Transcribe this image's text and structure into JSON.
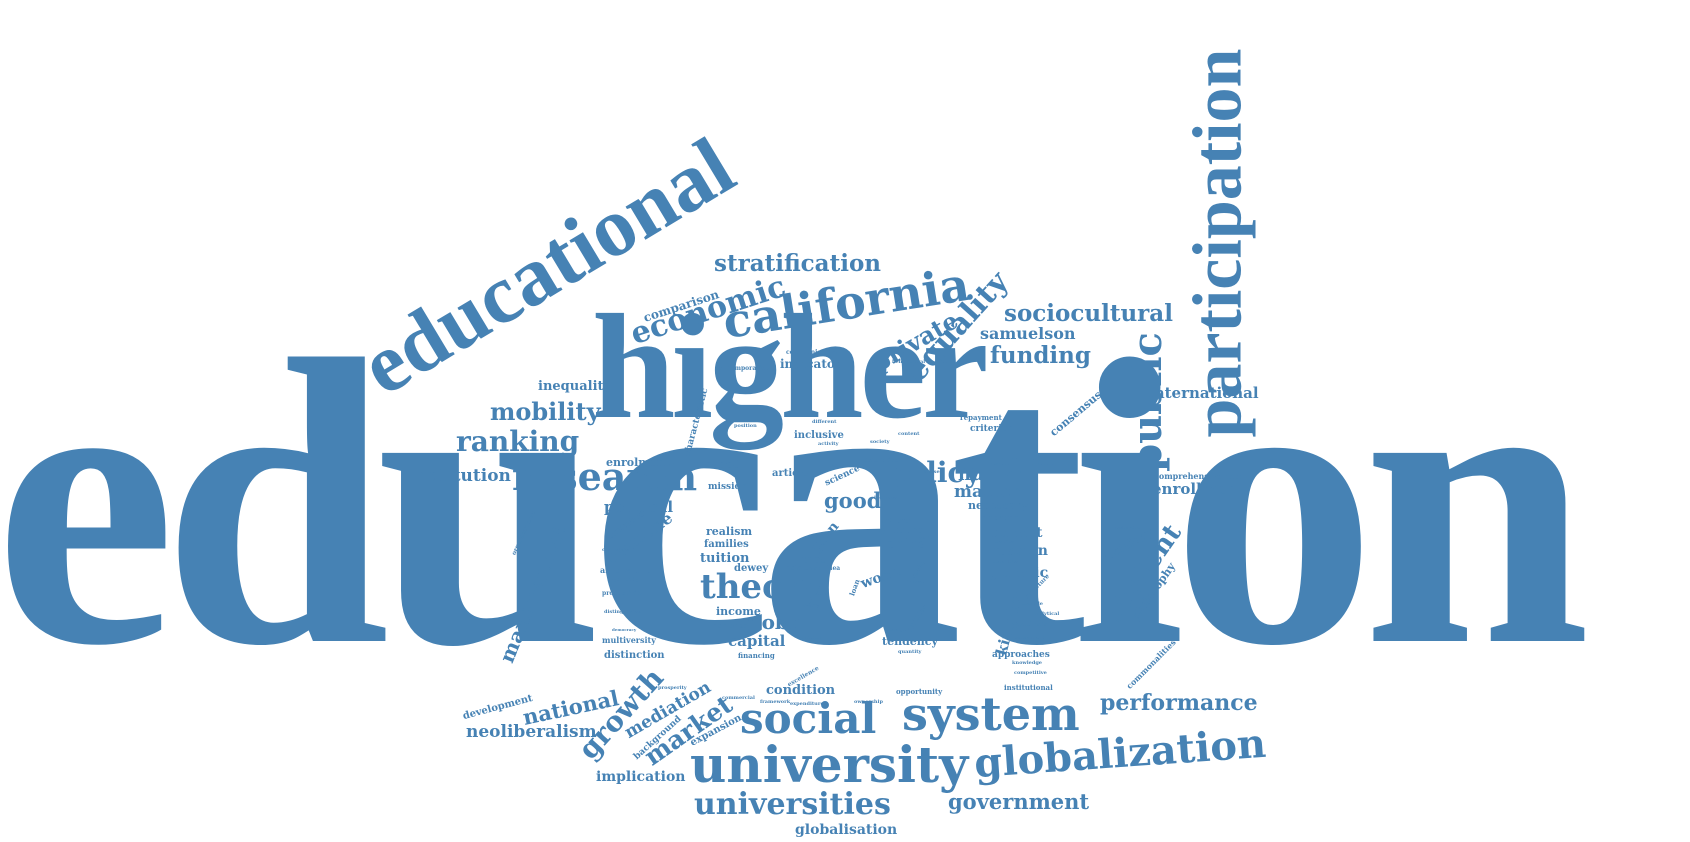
{
  "wordcloud": {
    "color": "#4682b4",
    "background": "#ffffff",
    "words": {
      "education": "education",
      "higher": "higher",
      "educational": "educational",
      "participation": "participation",
      "california": "california",
      "university": "university",
      "social": "social",
      "system": "system",
      "globalization": "globalization",
      "universities": "universities",
      "research": "research",
      "theory": "theory",
      "public": "public",
      "economic": "economic",
      "equality": "equality",
      "stratification": "stratification",
      "sociocultural": "sociocultural",
      "policy": "policy",
      "ranking": "ranking",
      "mobility": "mobility",
      "funding": "funding",
      "private": "private",
      "samuelson": "samuelson",
      "student": "student",
      "performance": "performance",
      "government": "government",
      "national": "national",
      "neoliberalism": "neoliberalism",
      "growth": "growth",
      "market": "market",
      "mediation": "mediation",
      "management": "management",
      "institution": "institution",
      "international": "international",
      "enrollment": "enrollment",
      "comprehensiveness": "comprehensiveness",
      "human": "human",
      "master": "master",
      "global": "global",
      "capital": "capital",
      "good": "good",
      "political": "political",
      "countrie": "countrie",
      "implication": "implication",
      "globalisation": "globalisation",
      "development": "development",
      "inequality": "inequality",
      "comparison": "comparison",
      "indicator": "indicator",
      "consensus": "consensus",
      "common": "common",
      "necessary": "necessary",
      "benefit": "benefit",
      "russian": "russian",
      "genetic": "genetic",
      "kingdom": "kingdom",
      "approaches": "approaches",
      "sociology": "sociology",
      "philosophy": "philosophy",
      "commonalities": "commonalities",
      "enrolment": "enrolment",
      "method": "method",
      "mission": "mission",
      "article": "article",
      "science": "science",
      "inclusive": "inclusive",
      "criterion": "criterion",
      "repayment": "repayment",
      "characteristic": "characteristic",
      "tuition": "tuition",
      "realism": "realism",
      "dewey": "dewey",
      "families": "families",
      "income": "income",
      "distinction": "distinction",
      "multiversity": "multiversity",
      "expansion": "expansion",
      "background": "background",
      "condition": "condition",
      "tendency": "tendency",
      "china": "china",
      "world": "world",
      "plan": "plan",
      "mas": "mas",
      "more": "more",
      "trend": "trend",
      "role": "role",
      "communicative": "communicative",
      "contemporaries": "contemporaries",
      "limitation": "limitation",
      "ambivalent": "ambivalent",
      "productivity": "productivity",
      "vygotsky": "vygotsky",
      "american": "american",
      "institutional": "institutional",
      "opportunity": "opportunity",
      "financing": "financing",
      "commercial": "commercial",
      "framework": "framework",
      "expenditure": "expenditure",
      "excellence": "excellence",
      "critical": "critical",
      "quantity": "quantity",
      "created": "created",
      "collective": "collective",
      "structure": "structure",
      "synthesis": "synthesis",
      "possible": "possible",
      "analytical": "analytical",
      "assessment": "assessment",
      "knowledge": "knowledge",
      "competitive": "competitive",
      "different": "different",
      "activity": "activity",
      "position": "position",
      "behavioural": "behavioural",
      "determine": "determine",
      "failure": "failure",
      "society": "society",
      "content": "content",
      "asia": "asia",
      "class": "class",
      "idea": "idea",
      "value": "value",
      "quality": "quality",
      "million": "million",
      "investigation": "investigation",
      "organizational": "organizational",
      "distinguishes": "distinguishes",
      "democracy": "democracy",
      "challenge": "challenge",
      "prosperity": "prosperity",
      "fashioned": "fashioned",
      "ownership": "ownership",
      "college": "college",
      "diverse": "diverse",
      "state": "state",
      "loan": "loan",
      "work": "work",
      "increase": "increase",
      "sense": "sense"
    }
  }
}
